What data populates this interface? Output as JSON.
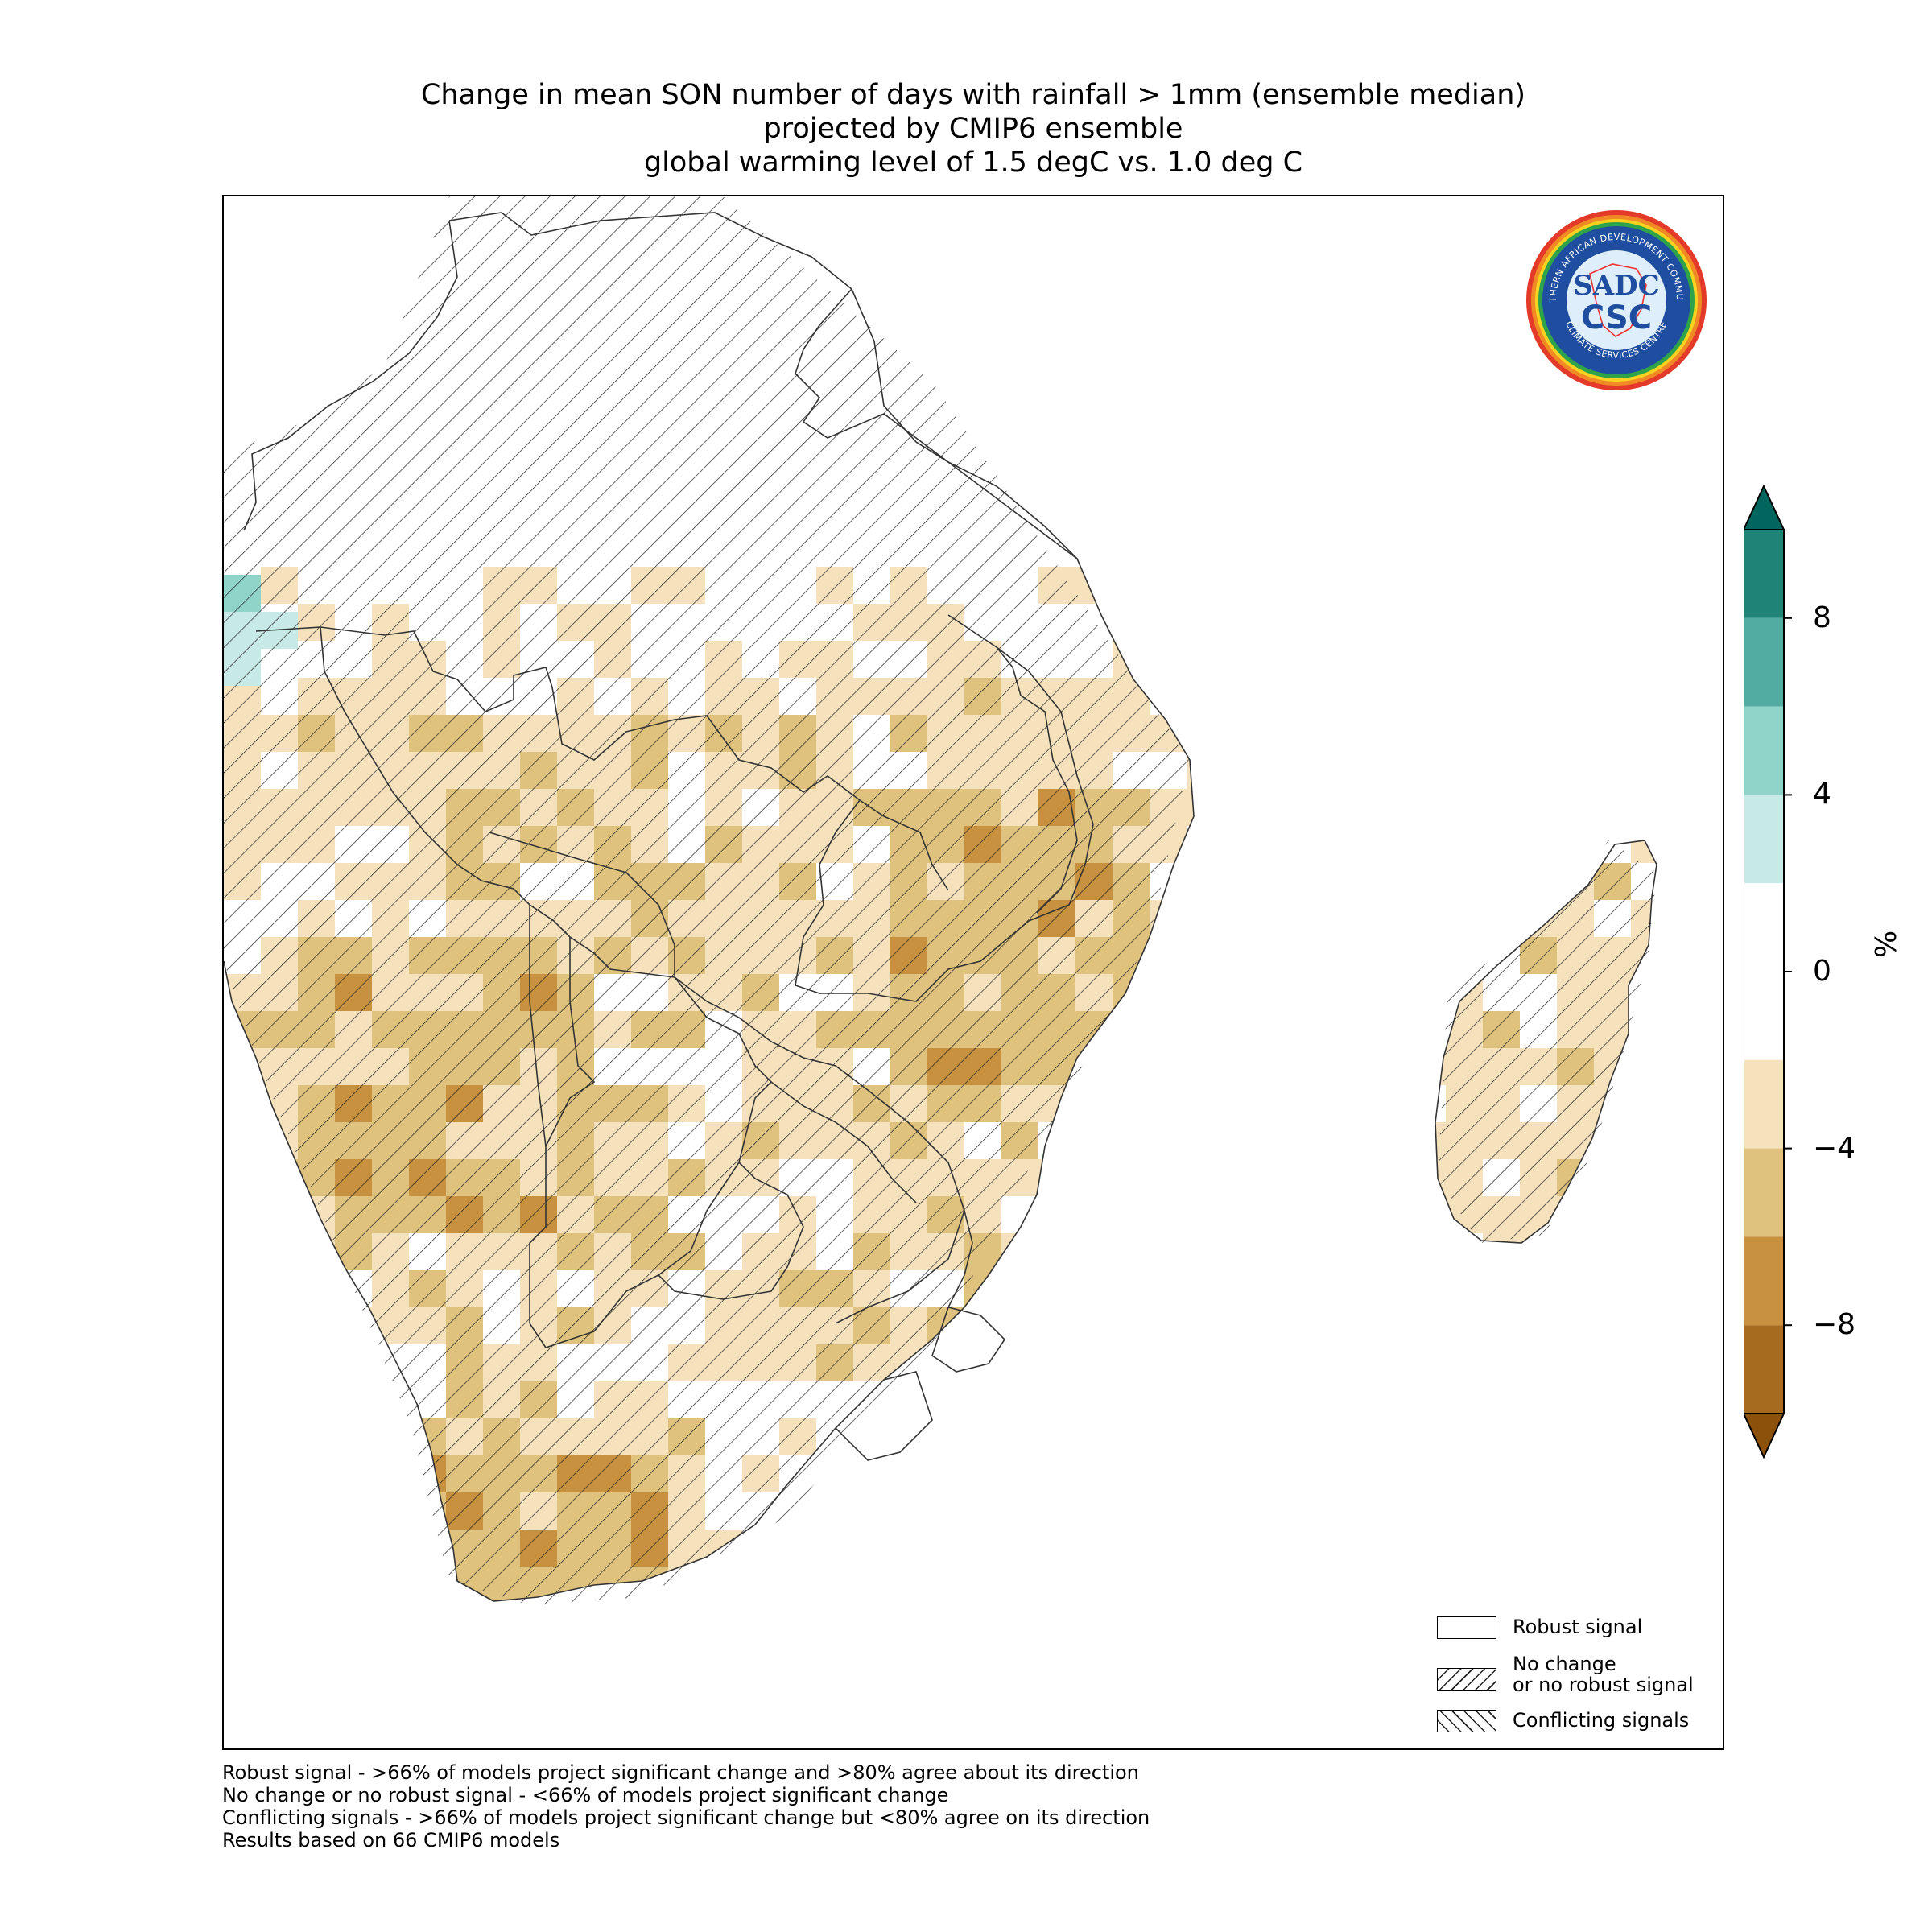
{
  "title": {
    "line1": "Change in mean SON number of days with rainfall > 1mm (ensemble median)",
    "line2": "projected by CMIP6 ensemble",
    "line3": "global warming level of 1.5 degC vs. 1.0 deg C"
  },
  "colorbar": {
    "unit": "%",
    "ticks": [
      "8",
      "4",
      "0",
      "−4",
      "−8"
    ],
    "tick_values": [
      8,
      4,
      0,
      -4,
      -8
    ],
    "range": [
      -10,
      10
    ],
    "extend": "both",
    "bins": [
      {
        "from": 8,
        "to": 10,
        "color": "#208378"
      },
      {
        "from": 6,
        "to": 8,
        "color": "#52aca1"
      },
      {
        "from": 4,
        "to": 6,
        "color": "#8fd3c9"
      },
      {
        "from": 2,
        "to": 4,
        "color": "#c7eae6"
      },
      {
        "from": -2,
        "to": 2,
        "color": "#ffffff"
      },
      {
        "from": -4,
        "to": -2,
        "color": "#f5e2bd"
      },
      {
        "from": -6,
        "to": -4,
        "color": "#dfc27d"
      },
      {
        "from": -8,
        "to": -6,
        "color": "#c7913f"
      },
      {
        "from": -10,
        "to": -8,
        "color": "#a76b1f"
      }
    ],
    "over_color": "#01665e",
    "under_color": "#8c510a"
  },
  "legend": {
    "robust": "Robust signal",
    "no_change_1": "No change",
    "no_change_2": "or no robust signal",
    "conflicting": "Conflicting signals"
  },
  "footnote": {
    "line1": "Robust signal - >66% of models project significant change and >80% agree about its direction",
    "line2": "No change or no robust signal - <66% of models project significant change",
    "line3": "Conflicting signals - >66% of models project significant change but <80% agree on its direction",
    "line4": "Results based on 66 CMIP6 models"
  },
  "logo": {
    "top_text": "SOUTHERN AFRICAN DEVELOPMENT COMMUNITY",
    "bottom_text": "CLIMATE SERVICES CENTRE",
    "mark_top": "SADC",
    "mark_bottom": "CSC"
  }
}
